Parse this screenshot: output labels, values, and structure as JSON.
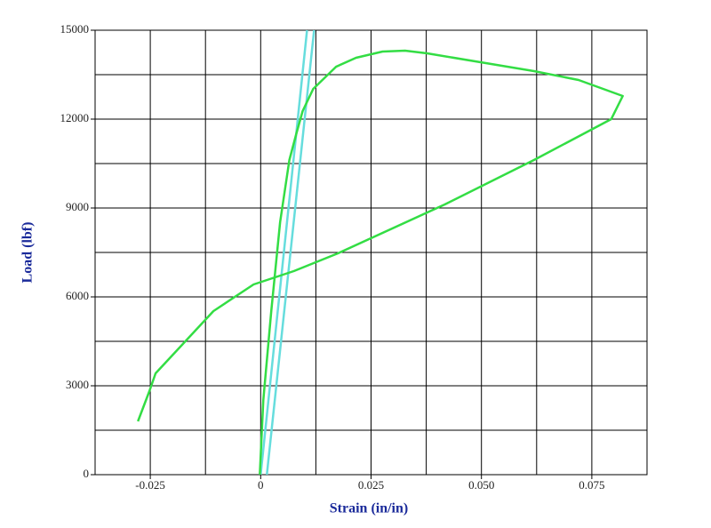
{
  "chart_data": {
    "type": "line",
    "x_label": "Strain (in/in)",
    "y_label": "Load (lbf)",
    "xlim": [
      -0.0375,
      0.0875
    ],
    "xticks": [
      -0.025,
      0,
      0.025,
      {
        "value": 0.05,
        "label": "0.050"
      },
      0.075
    ],
    "xgrid": [
      -0.0375,
      -0.025,
      -0.0125,
      0,
      0.0125,
      0.025,
      0.0375,
      0.05,
      0.0625,
      0.075,
      0.0875
    ],
    "ylim": [
      0,
      15000
    ],
    "yticks": [
      0,
      3000,
      6000,
      9000,
      12000,
      15000
    ],
    "ygrid": [
      0,
      1500,
      3000,
      4500,
      6000,
      7500,
      9000,
      10500,
      12000,
      13500,
      15000
    ],
    "grid": true,
    "series": [
      {
        "color": "#66dddd",
        "x": [
          0.0014,
          0.0121
        ],
        "values": [
          0,
          15000
        ]
      },
      {
        "color": "#66dddd",
        "x": [
          0.0,
          0.0105
        ],
        "values": [
          0,
          15000
        ]
      },
      {
        "color": "#33dd44",
        "x": [
          -0.0002,
          0.0006,
          0.0024,
          0.0044,
          0.0065,
          0.0081,
          0.0095,
          0.0119,
          0.0171,
          0.0216,
          0.0276,
          0.0327,
          0.0377,
          0.0498,
          0.0619,
          0.072,
          0.082,
          0.0794,
          0.0619,
          0.0417,
          0.0175,
          0.0075,
          -0.0016,
          -0.0107,
          -0.0238,
          -0.0252,
          -0.0278
        ],
        "values": [
          0,
          2520,
          5520,
          8520,
          10620,
          11520,
          12270,
          13020,
          13770,
          14070,
          14280,
          14310,
          14220,
          13920,
          13620,
          13320,
          12780,
          12000,
          10620,
          9120,
          7470,
          6870,
          6420,
          5520,
          3420,
          2820,
          1800
        ]
      }
    ]
  }
}
